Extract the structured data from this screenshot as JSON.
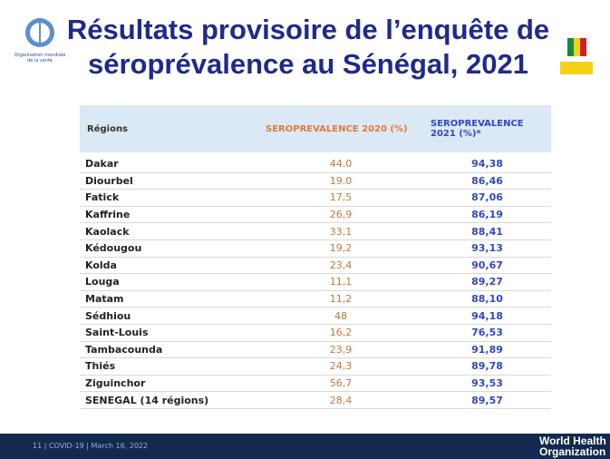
{
  "header": {
    "title_lines": [
      "Résultats provisoire de l’enquête de",
      "séroprévalence au Sénégal, 2021"
    ],
    "logo_text": "Organisation mondiale de la santé"
  },
  "table": {
    "columns": [
      "Régions",
      "SEROPREVALENCE 2020 (%)",
      "SEROPREVALENCE 2021 (%)*"
    ],
    "rows": [
      [
        "Dakar",
        "44.0",
        "94,38"
      ],
      [
        "Diourbel",
        "19.0",
        "86,46"
      ],
      [
        "Fatick",
        "17,5",
        "87,06"
      ],
      [
        "Kaffrine",
        "26,9",
        "86,19"
      ],
      [
        "Kaolack",
        "33,1",
        "88,41"
      ],
      [
        "Kédougou",
        "19,2",
        "93,13"
      ],
      [
        "Kolda",
        "23,4",
        "90,67"
      ],
      [
        "Louga",
        "11,1",
        "89,27"
      ],
      [
        "Matam",
        "11,2",
        "88,10"
      ],
      [
        "Sédhiou",
        "48",
        "94,18"
      ],
      [
        "Saint-Louis",
        "16,2",
        "76,53"
      ],
      [
        "Tambacounda",
        "23,9",
        "91,89"
      ],
      [
        "Thiés",
        "24,3",
        "89,78"
      ],
      [
        "Ziguinchor",
        "56,7",
        "93,53"
      ],
      [
        "SENEGAL (14 régions)",
        "28,4",
        "89,57"
      ]
    ]
  },
  "footer": {
    "left": "11 | COVID-19 | March 16, 2022",
    "right_lines": [
      "World Health",
      "Organization"
    ]
  }
}
